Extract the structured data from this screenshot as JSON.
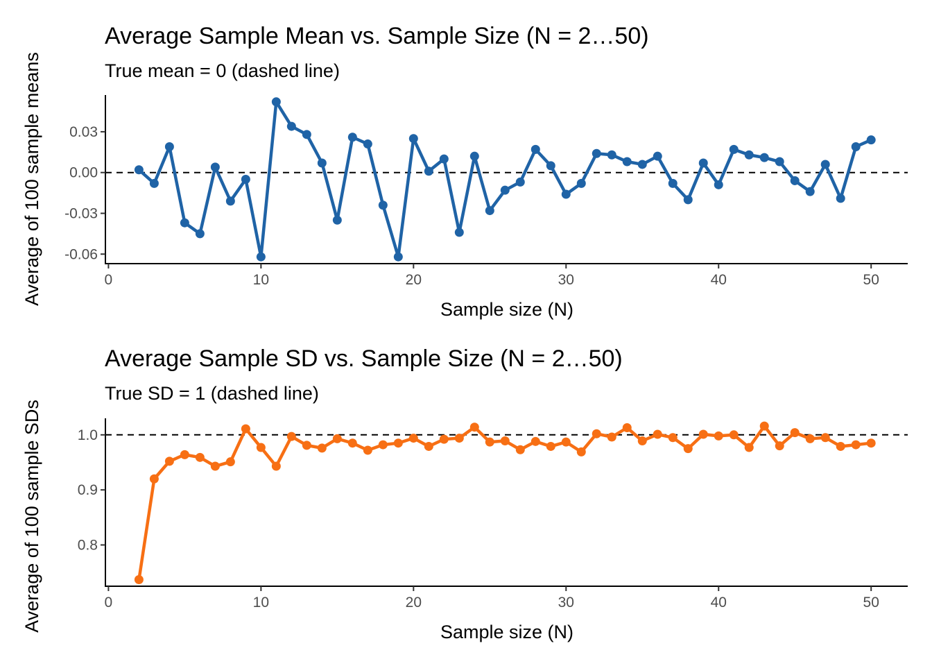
{
  "colors": {
    "series1": "#1f63a6",
    "series2": "#f76f14",
    "axis": "#000000",
    "tick_text": "#4d4d4d"
  },
  "chart_data": [
    {
      "type": "line",
      "title": "Average Sample Mean vs. Sample Size (N = 2…50)",
      "subtitle": "True mean = 0 (dashed line)",
      "xlabel": "Sample size (N)",
      "ylabel": "Average of 100 sample means",
      "xlim": [
        -0.2,
        52.4
      ],
      "ylim": [
        -0.067,
        0.057
      ],
      "x_ticks": [
        0,
        10,
        20,
        30,
        40,
        50
      ],
      "y_ticks": [
        -0.06,
        -0.03,
        0.0,
        0.03
      ],
      "y_tick_labels": [
        "-0.06",
        "-0.03",
        "0.00",
        "0.03"
      ],
      "reference_line": {
        "y": 0,
        "style": "dashed"
      },
      "grid": false,
      "legend": "none",
      "x": [
        2,
        3,
        4,
        5,
        6,
        7,
        8,
        9,
        10,
        11,
        12,
        13,
        14,
        15,
        16,
        17,
        18,
        19,
        20,
        21,
        22,
        23,
        24,
        25,
        26,
        27,
        28,
        29,
        30,
        31,
        32,
        33,
        34,
        35,
        36,
        37,
        38,
        39,
        40,
        41,
        42,
        43,
        44,
        45,
        46,
        47,
        48,
        49,
        50
      ],
      "series": [
        {
          "values": [
            0.002,
            -0.008,
            0.019,
            -0.037,
            -0.045,
            0.004,
            -0.021,
            -0.005,
            -0.062,
            0.052,
            0.034,
            0.028,
            0.007,
            -0.035,
            0.026,
            0.021,
            -0.024,
            -0.062,
            0.025,
            0.001,
            0.01,
            -0.044,
            0.012,
            -0.028,
            -0.013,
            -0.007,
            0.017,
            0.005,
            -0.016,
            -0.008,
            0.014,
            0.013,
            0.008,
            0.006,
            0.012,
            -0.008,
            -0.02,
            0.007,
            -0.009,
            0.017,
            0.013,
            0.011,
            0.008,
            -0.006,
            -0.014,
            0.006,
            -0.019,
            0.019,
            0.024
          ]
        }
      ]
    },
    {
      "type": "line",
      "title": "Average Sample SD vs. Sample Size (N = 2…50)",
      "subtitle": "True SD = 1 (dashed line)",
      "xlabel": "Sample size (N)",
      "ylabel": "Average of 100 sample SDs",
      "xlim": [
        -0.2,
        52.4
      ],
      "ylim": [
        0.725,
        1.03
      ],
      "x_ticks": [
        0,
        10,
        20,
        30,
        40,
        50
      ],
      "y_ticks": [
        0.8,
        0.9,
        1.0
      ],
      "y_tick_labels": [
        "0.8",
        "0.9",
        "1.0"
      ],
      "reference_line": {
        "y": 1,
        "style": "dashed"
      },
      "grid": false,
      "legend": "none",
      "x": [
        2,
        3,
        4,
        5,
        6,
        7,
        8,
        9,
        10,
        11,
        12,
        13,
        14,
        15,
        16,
        17,
        18,
        19,
        20,
        21,
        22,
        23,
        24,
        25,
        26,
        27,
        28,
        29,
        30,
        31,
        32,
        33,
        34,
        35,
        36,
        37,
        38,
        39,
        40,
        41,
        42,
        43,
        44,
        45,
        46,
        47,
        48,
        49,
        50
      ],
      "series": [
        {
          "values": [
            0.737,
            0.92,
            0.952,
            0.964,
            0.959,
            0.943,
            0.951,
            1.011,
            0.977,
            0.943,
            0.997,
            0.981,
            0.976,
            0.993,
            0.985,
            0.972,
            0.982,
            0.985,
            0.994,
            0.979,
            0.992,
            0.994,
            1.014,
            0.987,
            0.989,
            0.973,
            0.988,
            0.979,
            0.987,
            0.969,
            1.002,
            0.996,
            1.013,
            0.989,
            1.001,
            0.995,
            0.975,
            1.001,
            0.998,
            1.0,
            0.977,
            1.016,
            0.98,
            1.004,
            0.993,
            0.995,
            0.979,
            0.982,
            0.985
          ]
        }
      ]
    }
  ]
}
